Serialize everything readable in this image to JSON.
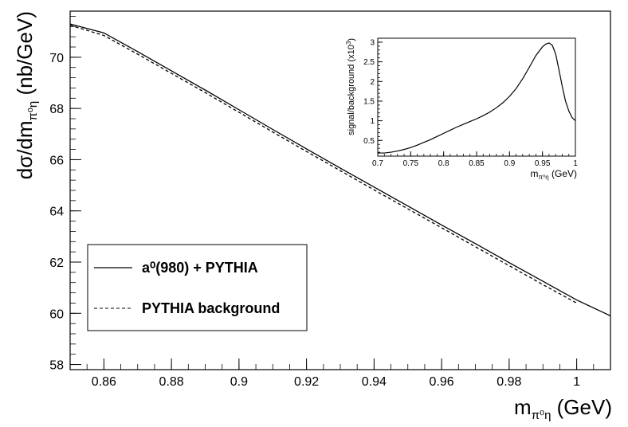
{
  "chart_data": [
    {
      "type": "line",
      "xlabel": "m",
      "xlabel_sub": "π⁰η",
      "xlabel_unit": " (GeV)",
      "ylabel": "dσ/dm",
      "ylabel_sub": "π⁰η",
      "ylabel_unit": " (nb/GeV)",
      "xlim": [
        0.85,
        1.01
      ],
      "ylim": [
        57.8,
        71.8
      ],
      "xticks": [
        0.86,
        0.88,
        0.9,
        0.92,
        0.94,
        0.96,
        0.98,
        1.0
      ],
      "xtick_labels": [
        "0.86",
        "0.88",
        "0.9",
        "0.92",
        "0.94",
        "0.96",
        "0.98",
        "1"
      ],
      "yticks": [
        58,
        60,
        62,
        64,
        66,
        68,
        70
      ],
      "ytick_labels": [
        "58",
        "60",
        "62",
        "64",
        "66",
        "68",
        "70"
      ],
      "legend_position": "bottom-left",
      "legend": [
        {
          "label": "a⁰(980) + PYTHIA",
          "style": "solid"
        },
        {
          "label": "PYTHIA background",
          "style": "dashed"
        }
      ],
      "series": [
        {
          "name": "a⁰(980) + PYTHIA",
          "style": "solid",
          "color": "#000000",
          "x": [
            0.85,
            0.86,
            0.87,
            0.88,
            0.89,
            0.9,
            0.91,
            0.92,
            0.93,
            0.94,
            0.95,
            0.96,
            0.97,
            0.98,
            0.99,
            1.0,
            1.01
          ],
          "y": [
            71.3,
            70.95,
            70.22,
            69.47,
            68.72,
            67.95,
            67.18,
            66.42,
            65.67,
            64.93,
            64.19,
            63.45,
            62.72,
            61.98,
            61.25,
            60.52,
            59.9
          ]
        },
        {
          "name": "PYTHIA background",
          "style": "dashed",
          "color": "#000000",
          "x": [
            0.85,
            0.86,
            0.87,
            0.88,
            0.89,
            0.9,
            0.91,
            0.92,
            0.93,
            0.94,
            0.95,
            0.96,
            0.97,
            0.98,
            0.99,
            1.0
          ],
          "y": [
            71.25,
            70.85,
            70.12,
            69.37,
            68.62,
            67.85,
            67.08,
            66.32,
            65.57,
            64.82,
            64.08,
            63.34,
            62.6,
            61.86,
            61.12,
            60.4
          ]
        }
      ]
    },
    {
      "type": "line",
      "xlabel": "m",
      "xlabel_sub": "π⁰η",
      "xlabel_unit": " (GeV)",
      "ylabel": "signal/background (x10",
      "ylabel_sup": "3",
      "ylabel_close": ")",
      "xlim": [
        0.7,
        1.0
      ],
      "ylim": [
        0.1,
        3.1
      ],
      "xticks": [
        0.7,
        0.75,
        0.8,
        0.85,
        0.9,
        0.95,
        1.0
      ],
      "xtick_labels": [
        "0.7",
        "0.75",
        "0.8",
        "0.85",
        "0.9",
        "0.95",
        "1"
      ],
      "yticks": [
        0.5,
        1.0,
        1.5,
        2.0,
        2.5,
        3.0
      ],
      "ytick_labels": [
        "0.5",
        "1",
        "1.5",
        "2",
        "2.5",
        "3"
      ],
      "series": [
        {
          "style": "solid",
          "color": "#000000",
          "x": [
            0.7,
            0.71,
            0.72,
            0.73,
            0.74,
            0.75,
            0.76,
            0.77,
            0.78,
            0.79,
            0.8,
            0.81,
            0.82,
            0.83,
            0.84,
            0.85,
            0.86,
            0.87,
            0.88,
            0.89,
            0.9,
            0.91,
            0.92,
            0.93,
            0.94,
            0.95,
            0.955,
            0.96,
            0.965,
            0.97,
            0.975,
            0.98,
            0.985,
            0.99,
            0.995,
            1.0
          ],
          "y": [
            0.18,
            0.18,
            0.2,
            0.23,
            0.27,
            0.32,
            0.38,
            0.45,
            0.52,
            0.6,
            0.68,
            0.76,
            0.84,
            0.91,
            0.98,
            1.05,
            1.13,
            1.22,
            1.33,
            1.46,
            1.62,
            1.82,
            2.07,
            2.36,
            2.66,
            2.88,
            2.95,
            2.98,
            2.92,
            2.7,
            2.3,
            1.88,
            1.5,
            1.25,
            1.08,
            1.0
          ]
        }
      ]
    }
  ]
}
